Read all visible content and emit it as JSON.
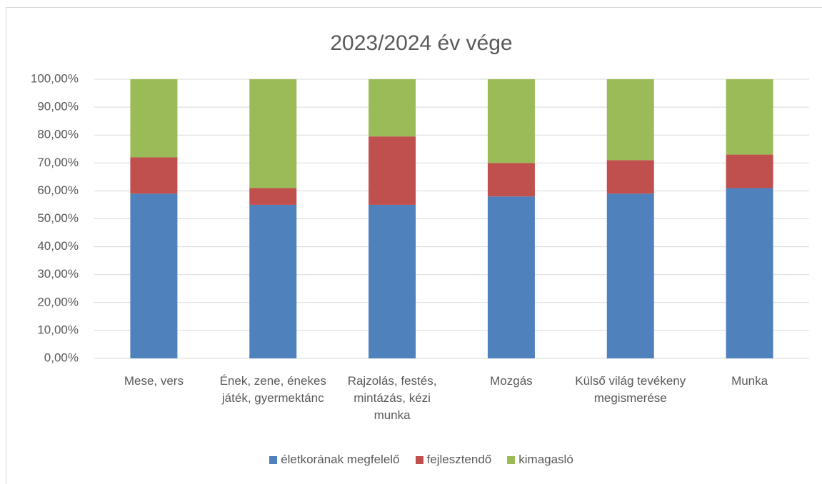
{
  "chart_data": {
    "type": "stacked_bar",
    "title": "2023/2024 év vége",
    "categories": [
      "Mese, vers",
      "Ének, zene, énekes játék, gyermektánc",
      "Rajzolás, festés, mintázás, kézi munka",
      "Mozgás",
      "Külső világ tevékeny megismerése",
      "Munka"
    ],
    "series": [
      {
        "name": "életkorának megfelelő",
        "color": "#4f81bd",
        "values": [
          59,
          55,
          55,
          58,
          59,
          61
        ]
      },
      {
        "name": "fejlesztendő",
        "color": "#c0504d",
        "values": [
          13,
          6,
          24.5,
          12,
          12,
          12
        ]
      },
      {
        "name": "kimagasló",
        "color": "#9bbb59",
        "values": [
          28,
          39,
          20.5,
          30,
          29,
          27
        ]
      }
    ],
    "ylim": [
      0,
      100
    ],
    "yticks": [
      {
        "value": 0,
        "label": "0,00%"
      },
      {
        "value": 10,
        "label": "10,00%"
      },
      {
        "value": 20,
        "label": "20,00%"
      },
      {
        "value": 30,
        "label": "30,00%"
      },
      {
        "value": 40,
        "label": "40,00%"
      },
      {
        "value": 50,
        "label": "50,00%"
      },
      {
        "value": 60,
        "label": "60,00%"
      },
      {
        "value": 70,
        "label": "70,00%"
      },
      {
        "value": 80,
        "label": "80,00%"
      },
      {
        "value": 90,
        "label": "90,00%"
      },
      {
        "value": 100,
        "label": "100,00%"
      }
    ],
    "grid": true,
    "legend": "bottom"
  }
}
